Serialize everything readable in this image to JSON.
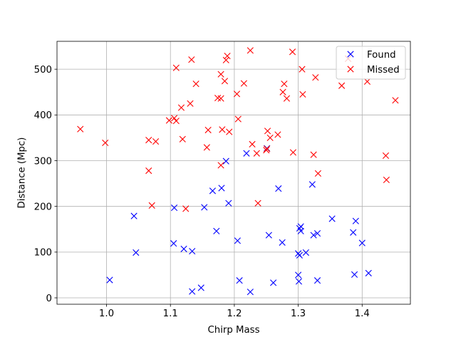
{
  "chart_data": {
    "type": "scatter",
    "title": "",
    "xlabel": "Chirp Mass",
    "ylabel": "Distance (Mpc)",
    "xlim": [
      0.9225,
      1.4755
    ],
    "ylim": [
      -14.0,
      561.0
    ],
    "xticks": [
      1.0,
      1.1,
      1.2,
      1.3,
      1.4
    ],
    "xtick_labels": [
      "1.0",
      "1.1",
      "1.2",
      "1.3",
      "1.4"
    ],
    "yticks": [
      0,
      100,
      200,
      300,
      400,
      500
    ],
    "ytick_labels": [
      "0",
      "100",
      "200",
      "300",
      "400",
      "500"
    ],
    "grid": true,
    "legend_position": "top-right",
    "marker": "x",
    "series": [
      {
        "name": "Found",
        "color": "#0000ff",
        "points": [
          [
            1.005,
            39
          ],
          [
            1.043,
            179
          ],
          [
            1.046,
            99
          ],
          [
            1.105,
            119
          ],
          [
            1.106,
            197
          ],
          [
            1.121,
            107
          ],
          [
            1.134,
            14
          ],
          [
            1.134,
            102
          ],
          [
            1.148,
            22
          ],
          [
            1.153,
            198
          ],
          [
            1.166,
            234
          ],
          [
            1.172,
            146
          ],
          [
            1.18,
            240
          ],
          [
            1.187,
            299
          ],
          [
            1.191,
            207
          ],
          [
            1.205,
            125
          ],
          [
            1.208,
            38
          ],
          [
            1.219,
            316
          ],
          [
            1.225,
            13
          ],
          [
            1.251,
            327
          ],
          [
            1.254,
            137
          ],
          [
            1.261,
            33
          ],
          [
            1.269,
            239
          ],
          [
            1.275,
            121
          ],
          [
            1.3,
            97
          ],
          [
            1.3,
            50
          ],
          [
            1.301,
            36
          ],
          [
            1.302,
            152
          ],
          [
            1.302,
            93
          ],
          [
            1.304,
            146
          ],
          [
            1.304,
            156
          ],
          [
            1.312,
            99
          ],
          [
            1.322,
            248
          ],
          [
            1.324,
            137
          ],
          [
            1.33,
            141
          ],
          [
            1.33,
            38
          ],
          [
            1.353,
            173
          ],
          [
            1.386,
            143
          ],
          [
            1.388,
            51
          ],
          [
            1.39,
            168
          ],
          [
            1.4,
            120
          ],
          [
            1.41,
            54
          ]
        ]
      },
      {
        "name": "Missed",
        "color": "#ff0000",
        "points": [
          [
            0.959,
            369
          ],
          [
            0.998,
            339
          ],
          [
            1.066,
            278
          ],
          [
            1.066,
            345
          ],
          [
            1.071,
            202
          ],
          [
            1.077,
            342
          ],
          [
            1.098,
            388
          ],
          [
            1.106,
            393
          ],
          [
            1.109,
            503
          ],
          [
            1.109,
            387
          ],
          [
            1.117,
            416
          ],
          [
            1.119,
            347
          ],
          [
            1.124,
            195
          ],
          [
            1.131,
            425
          ],
          [
            1.133,
            521
          ],
          [
            1.14,
            468
          ],
          [
            1.157,
            329
          ],
          [
            1.159,
            367
          ],
          [
            1.174,
            437
          ],
          [
            1.179,
            489
          ],
          [
            1.179,
            436
          ],
          [
            1.179,
            290
          ],
          [
            1.181,
            368
          ],
          [
            1.185,
            474
          ],
          [
            1.187,
            520
          ],
          [
            1.189,
            529
          ],
          [
            1.192,
            363
          ],
          [
            1.204,
            446
          ],
          [
            1.206,
            391
          ],
          [
            1.215,
            469
          ],
          [
            1.225,
            541
          ],
          [
            1.228,
            336
          ],
          [
            1.235,
            316
          ],
          [
            1.237,
            207
          ],
          [
            1.25,
            323
          ],
          [
            1.251,
            326
          ],
          [
            1.252,
            365
          ],
          [
            1.256,
            350
          ],
          [
            1.268,
            357
          ],
          [
            1.276,
            450
          ],
          [
            1.278,
            468
          ],
          [
            1.282,
            436
          ],
          [
            1.291,
            538
          ],
          [
            1.292,
            318
          ],
          [
            1.306,
            500
          ],
          [
            1.307,
            445
          ],
          [
            1.324,
            313
          ],
          [
            1.327,
            482
          ],
          [
            1.331,
            272
          ],
          [
            1.368,
            464
          ],
          [
            1.378,
            523
          ],
          [
            1.408,
            473
          ],
          [
            1.437,
            311
          ],
          [
            1.438,
            258
          ],
          [
            1.452,
            432
          ]
        ]
      }
    ]
  }
}
